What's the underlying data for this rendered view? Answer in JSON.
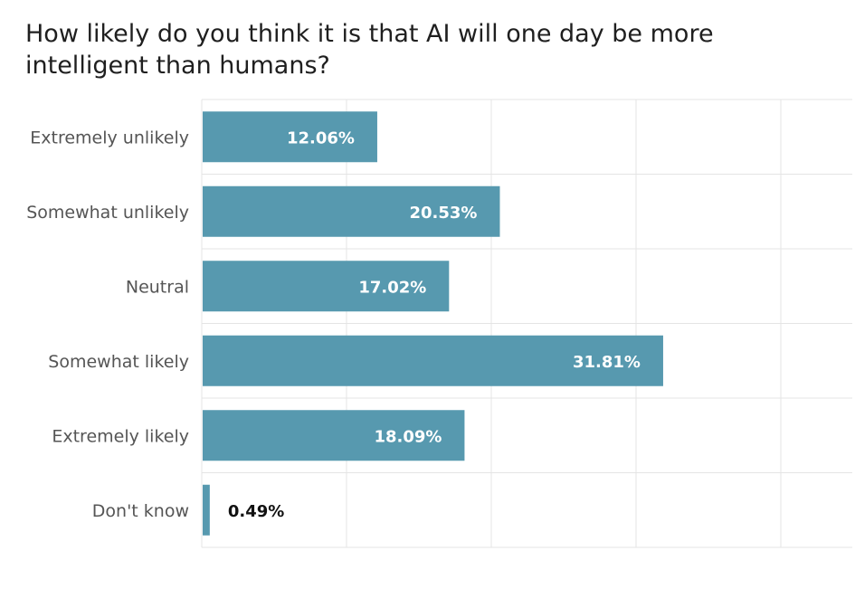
{
  "chart_data": {
    "type": "bar",
    "orientation": "horizontal",
    "title": "How likely do you think it is that AI will one day be more intelligent than humans?",
    "categories": [
      "Extremely unlikely",
      "Somewhat unlikely",
      "Neutral",
      "Somewhat likely",
      "Extremely likely",
      "Don't know"
    ],
    "values": [
      12.06,
      20.53,
      17.02,
      31.81,
      18.09,
      0.49
    ],
    "value_labels": [
      "12.06%",
      "20.53%",
      "17.02%",
      "31.81%",
      "18.09%",
      "0.49%"
    ],
    "xlim": [
      0,
      45
    ],
    "grid": true,
    "colors": {
      "bar": "#5799af",
      "grid": "#e4e4e4",
      "label_inside": "#ffffff",
      "label_outside": "#111111"
    }
  }
}
